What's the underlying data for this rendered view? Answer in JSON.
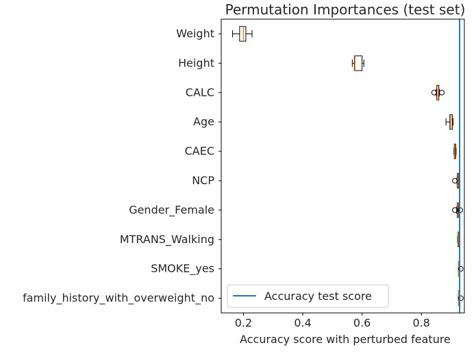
{
  "chart_data": {
    "type": "boxplot",
    "orientation": "horizontal",
    "title": "Permutation Importances (test set)",
    "xlabel": "Accuracy score with perturbed feature",
    "ylabel": "",
    "xlim": [
      0.125,
      0.945
    ],
    "xticks": [
      0.2,
      0.4,
      0.6,
      0.8
    ],
    "xtick_labels": [
      "0.2",
      "0.4",
      "0.6",
      "0.8"
    ],
    "grid": false,
    "legend": {
      "position": "lower-left",
      "entries": [
        "Accuracy test score"
      ]
    },
    "reference_line": {
      "name": "Accuracy test score",
      "value": 0.929,
      "color": "#1f77b4"
    },
    "colors": {
      "box": "#000000",
      "median": "#ff7f0e",
      "box_fill": "#ffffff",
      "reference": "#1f77b4",
      "text": "#262626"
    },
    "categories": [
      "Weight",
      "Height",
      "CALC",
      "Age",
      "CAEC",
      "NCP",
      "Gender_Female",
      "MTRANS_Walking",
      "SMOKE_yes",
      "family_history_with_overweight_no"
    ],
    "boxes": [
      {
        "label": "Weight",
        "whislo": 0.163,
        "q1": 0.187,
        "med": 0.2,
        "q3": 0.208,
        "whishi": 0.229,
        "fliers": []
      },
      {
        "label": "Height",
        "whislo": 0.567,
        "q1": 0.574,
        "med": 0.576,
        "q3": 0.6,
        "whishi": 0.606,
        "fliers": []
      },
      {
        "label": "CALC",
        "whislo": 0.85,
        "q1": 0.852,
        "med": 0.854,
        "q3": 0.859,
        "whishi": 0.861,
        "fliers": [
          0.843,
          0.869
        ]
      },
      {
        "label": "Age",
        "whislo": 0.883,
        "q1": 0.896,
        "med": 0.9,
        "q3": 0.905,
        "whishi": 0.907,
        "fliers": []
      },
      {
        "label": "CAEC",
        "whislo": 0.91,
        "q1": 0.911,
        "med": 0.913,
        "q3": 0.916,
        "whishi": 0.917,
        "fliers": []
      },
      {
        "label": "NCP",
        "whislo": 0.92,
        "q1": 0.921,
        "med": 0.923,
        "q3": 0.926,
        "whishi": 0.927,
        "fliers": [
          0.913
        ]
      },
      {
        "label": "Gender_Female",
        "whislo": 0.919,
        "q1": 0.921,
        "med": 0.923,
        "q3": 0.925,
        "whishi": 0.926,
        "fliers": [
          0.913,
          0.931
        ]
      },
      {
        "label": "MTRANS_Walking",
        "whislo": 0.922,
        "q1": 0.923,
        "med": 0.924,
        "q3": 0.926,
        "whishi": 0.927,
        "fliers": []
      },
      {
        "label": "SMOKE_yes",
        "whislo": 0.925,
        "q1": 0.925,
        "med": 0.925,
        "q3": 0.926,
        "whishi": 0.926,
        "fliers": [
          0.933
        ]
      },
      {
        "label": "family_history_with_overweight_no",
        "whislo": 0.925,
        "q1": 0.925,
        "med": 0.926,
        "q3": 0.926,
        "whishi": 0.926,
        "fliers": [
          0.933
        ]
      }
    ]
  }
}
